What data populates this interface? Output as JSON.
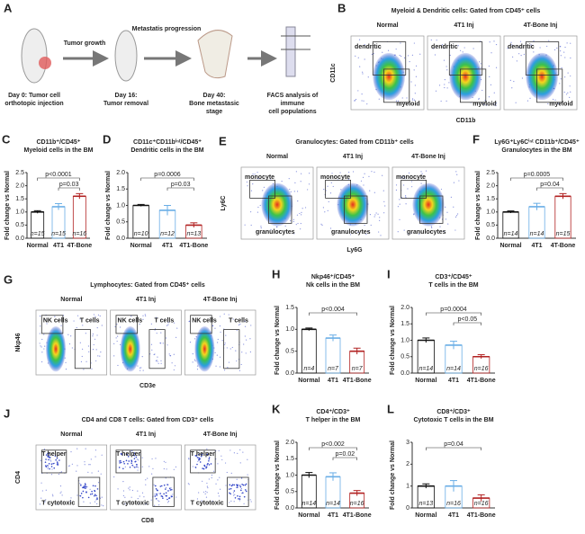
{
  "figure": {
    "panel_A": {
      "letter": "A",
      "arrow_labels": [
        "Tumor growth",
        "Metastatis progression"
      ],
      "steps": [
        [
          "Day 0: Tumor cell",
          "orthotopic injection"
        ],
        [
          "Day 16:",
          "Tumor removal"
        ],
        [
          "Day 40:",
          "Bone metastasic",
          "stage"
        ],
        [
          "FACS analysis of",
          "immune",
          "cell populations"
        ]
      ]
    },
    "flow_panels": [
      {
        "letter": "B",
        "title": "Myeloid & Dendritic cells: Gated from CD45⁺ cells",
        "groups": [
          "Normal",
          "4T1 Inj",
          "4T-Bone Inj"
        ],
        "colors": [
          "#111111",
          "#6aaee6",
          "#b22222"
        ],
        "gates": [
          "dendritic",
          "myeloid"
        ],
        "xlabel": "CD11b",
        "ylabel": "CD11c"
      },
      {
        "letter": "E",
        "title": "Granulocytes: Gated from CD11b⁺ cells",
        "groups": [
          "Normal",
          "4T1 Inj",
          "4T-Bone Inj"
        ],
        "colors": [
          "#111111",
          "#6aaee6",
          "#b22222"
        ],
        "gates": [
          "monocyte",
          "granulocytes"
        ],
        "xlabel": "Ly6G",
        "ylabel": "Ly6C"
      },
      {
        "letter": "G",
        "title": "Lymphocytes: Gated from CD45⁺ cells",
        "groups": [
          "Normal",
          "4T1 Inj",
          "4T-Bone Inj"
        ],
        "colors": [
          "#111111",
          "#6aaee6",
          "#b22222"
        ],
        "gates": [
          "NK cells",
          "T cells"
        ],
        "xlabel": "CD3e",
        "ylabel": "Nkp46"
      },
      {
        "letter": "J",
        "title": "CD4 and CD8 T  cells: Gated from CD3⁺ cells",
        "groups": [
          "Normal",
          "4T1 Inj",
          "4T-Bone Inj"
        ],
        "colors": [
          "#111111",
          "#6aaee6",
          "#b22222"
        ],
        "gates": [
          "T helper",
          "T cytotoxic"
        ],
        "xlabel": "CD8",
        "ylabel": "CD4"
      }
    ]
  },
  "chart_data": [
    {
      "type": "bar",
      "letter": "C",
      "title": "CD11b⁺/CD45⁺",
      "subtitle": "Myeloid cells in the BM",
      "ylabel": "Fold change vs Normal",
      "categories": [
        "Normal",
        "4T1",
        "4T-Bone"
      ],
      "values": [
        1.0,
        1.2,
        1.6
      ],
      "errors": [
        0.05,
        0.12,
        0.1
      ],
      "colors": [
        "#111111",
        "#6aaee6",
        "#b22222"
      ],
      "n_labels": [
        "n=15",
        "n=15",
        "n=16"
      ],
      "pvalues": [
        "p<0.0001",
        "p=0.03"
      ],
      "ylim": [
        0,
        2.5
      ],
      "yticks": [
        {
          "value": 0,
          "label": "0.0"
        },
        0.5,
        {
          "value": 1,
          "label": "1.0"
        },
        1.5,
        {
          "value": 2,
          "label": "2.0"
        },
        2.5
      ]
    },
    {
      "type": "bar",
      "letter": "D",
      "title": "CD11c⁺CD11bⁱⁿᵗ/CD45⁺",
      "subtitle": "Dendritic cells in the BM",
      "ylabel": "Fold change vs Normal",
      "categories": [
        "Normal",
        "4T1",
        "4T1-Bone"
      ],
      "values": [
        1.0,
        0.85,
        0.4
      ],
      "errors": [
        0.03,
        0.15,
        0.07
      ],
      "colors": [
        "#111111",
        "#6aaee6",
        "#b22222"
      ],
      "n_labels": [
        "n=10",
        "n=12",
        "n=13"
      ],
      "pvalues": [
        "p=0.0006",
        "p=0.03"
      ],
      "ylim": [
        0,
        2.0
      ],
      "yticks": [
        {
          "value": 0,
          "label": "0.0"
        },
        0.5,
        {
          "value": 1,
          "label": "1.0"
        },
        1.5,
        {
          "value": 2,
          "label": "2.0"
        }
      ]
    },
    {
      "type": "bar",
      "letter": "F",
      "title": "Ly6G⁺Ly6Cⁱⁿᵗ CD11b⁺/CD45⁺",
      "subtitle": "Granulocytes in the BM",
      "ylabel": "Fold change vs Normal",
      "categories": [
        "Normal",
        "4T1",
        "4T-Bone"
      ],
      "values": [
        1.0,
        1.2,
        1.6
      ],
      "errors": [
        0.04,
        0.13,
        0.1
      ],
      "colors": [
        "#111111",
        "#6aaee6",
        "#b22222"
      ],
      "n_labels": [
        "n=14",
        "n=14",
        "n=15"
      ],
      "pvalues": [
        "p=0.0005",
        "p=0.04"
      ],
      "ylim": [
        0,
        2.5
      ],
      "yticks": [
        {
          "value": 0,
          "label": "0.0"
        },
        0.5,
        {
          "value": 1,
          "label": "1.0"
        },
        1.5,
        {
          "value": 2,
          "label": "2.0"
        },
        2.5
      ]
    },
    {
      "type": "bar",
      "letter": "H",
      "title": "Nkp46⁺/CD45⁺",
      "subtitle": "Nk cells in the BM",
      "ylabel": "Fold change vs Normal",
      "categories": [
        "Normal",
        "4T1",
        "4T1-Bone"
      ],
      "values": [
        1.0,
        0.8,
        0.5
      ],
      "errors": [
        0.03,
        0.07,
        0.07
      ],
      "colors": [
        "#111111",
        "#6aaee6",
        "#b22222"
      ],
      "n_labels": [
        "n=4",
        "n=7",
        "n=7"
      ],
      "pvalues": [
        "p<0.004"
      ],
      "ylim": [
        0,
        1.5
      ],
      "yticks": [
        {
          "value": 0,
          "label": "0.0"
        },
        0.5,
        {
          "value": 1,
          "label": "1.0"
        },
        1.5
      ]
    },
    {
      "type": "bar",
      "letter": "I",
      "title": "CD3⁺/CD45⁺",
      "subtitle": "T cells in the BM",
      "ylabel": "Fold change vs Normal",
      "categories": [
        "Normal",
        "4T1",
        "4T1-Bone"
      ],
      "values": [
        1.0,
        0.85,
        0.5
      ],
      "errors": [
        0.07,
        0.12,
        0.06
      ],
      "colors": [
        "#111111",
        "#6aaee6",
        "#b22222"
      ],
      "n_labels": [
        "n=14",
        "n=14",
        "n=16"
      ],
      "pvalues": [
        "p=0.0004",
        "p<0.05"
      ],
      "ylim": [
        0,
        2.0
      ],
      "yticks": [
        {
          "value": 0,
          "label": "0.0"
        },
        0.5,
        {
          "value": 1,
          "label": "1.0"
        },
        1.5,
        {
          "value": 2,
          "label": "2.0"
        }
      ]
    },
    {
      "type": "bar",
      "letter": "K",
      "title": "CD4⁺/CD3⁺",
      "subtitle": "T helper in the BM",
      "ylabel": "Fold change vs Normal",
      "categories": [
        "Normal",
        "4T1",
        "4T1-Bone"
      ],
      "values": [
        1.0,
        0.95,
        0.45
      ],
      "errors": [
        0.08,
        0.12,
        0.08
      ],
      "colors": [
        "#111111",
        "#6aaee6",
        "#b22222"
      ],
      "n_labels": [
        "n=14",
        "n=14",
        "n=16"
      ],
      "pvalues": [
        "p<0.002",
        "p=0.02"
      ],
      "ylim": [
        0,
        2.0
      ],
      "yticks": [
        {
          "value": 0,
          "label": "0.0"
        },
        0.5,
        {
          "value": 1,
          "label": "1.0"
        },
        1.5,
        {
          "value": 2,
          "label": "2.0"
        }
      ]
    },
    {
      "type": "bar",
      "letter": "L",
      "title": "CD8⁺/CD3⁺",
      "subtitle": "Cytotoxic T cells in the BM",
      "ylabel": "Fold change vs Normal",
      "categories": [
        "Normal",
        "4T1",
        "4T1-Bone"
      ],
      "values": [
        1.0,
        1.0,
        0.45
      ],
      "errors": [
        0.1,
        0.25,
        0.15
      ],
      "colors": [
        "#111111",
        "#6aaee6",
        "#b22222"
      ],
      "n_labels": [
        "n=13",
        "n=16",
        "n=16"
      ],
      "pvalues": [
        "p=0.04"
      ],
      "ylim": [
        0,
        3
      ],
      "yticks": [
        0,
        1,
        2,
        3
      ]
    }
  ]
}
